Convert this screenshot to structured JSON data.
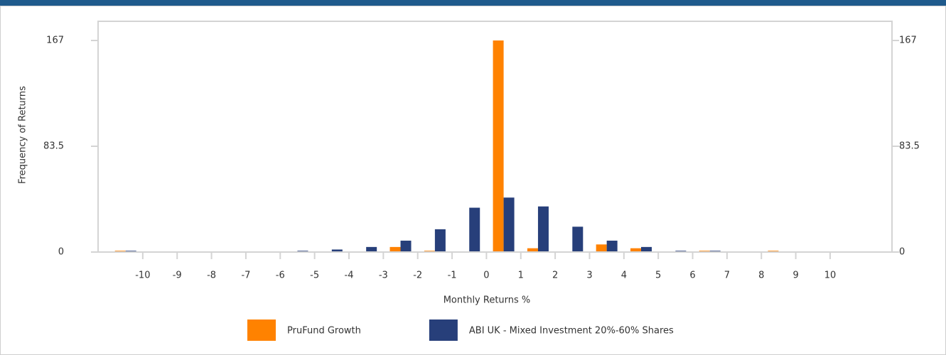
{
  "chart_data": {
    "type": "bar",
    "x": [
      -10.5,
      -9.5,
      -8.5,
      -7.5,
      -6.5,
      -5.5,
      -4.5,
      -3.5,
      -2.5,
      -1.5,
      -0.5,
      0.5,
      1.5,
      2.5,
      3.5,
      4.5,
      5.5,
      6.5,
      7.5,
      8.5,
      9.5,
      10.5
    ],
    "series": [
      {
        "name": "PruFund Growth",
        "color": "#ff8200",
        "values": [
          1,
          0,
          0,
          0,
          0,
          0,
          0,
          0,
          4,
          1,
          0,
          167,
          3,
          0,
          6,
          3,
          0,
          1,
          0,
          1,
          0,
          0
        ]
      },
      {
        "name": "ABI UK - Mixed Investment 20%-60% Shares",
        "color": "#273f7a",
        "values": [
          1,
          0,
          0,
          0,
          0,
          1,
          2,
          4,
          9,
          18,
          35,
          43,
          36,
          20,
          9,
          4,
          1,
          1,
          0,
          0,
          0,
          0
        ]
      }
    ],
    "xlabel": "Monthly Returns %",
    "ylabel": "Frequency of Returns",
    "xlim": [
      -11.3,
      11.8
    ],
    "xticks": [
      -10,
      -9,
      -8,
      -7,
      -6,
      -5,
      -4,
      -3,
      -2,
      -1,
      0,
      1,
      2,
      3,
      4,
      5,
      6,
      7,
      8,
      9,
      10
    ],
    "ylim": [
      0,
      167
    ],
    "yticks": [
      0,
      83.5,
      167
    ],
    "y2lim": [
      0,
      167
    ],
    "y2ticks": [
      0,
      83.5,
      167
    ],
    "legend": "bottom"
  }
}
